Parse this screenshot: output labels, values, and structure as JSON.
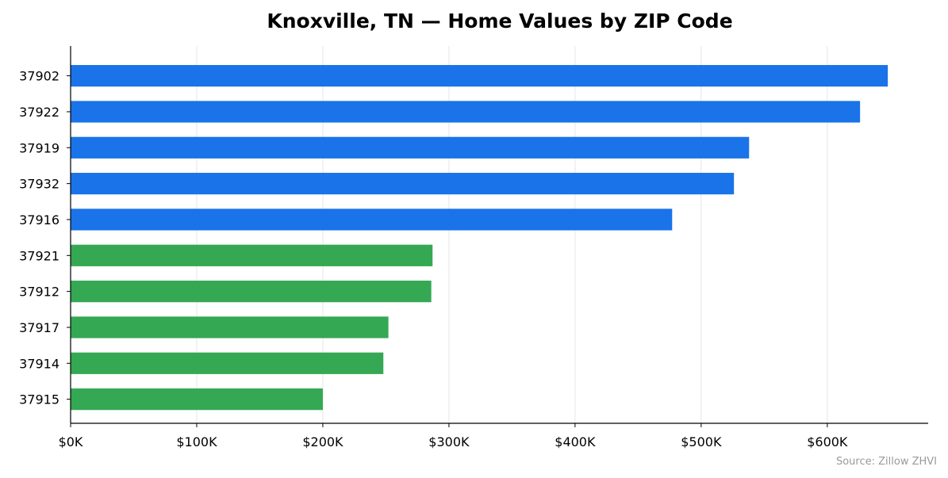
{
  "chart_data": {
    "type": "bar",
    "orientation": "horizontal",
    "title": "Knoxville, TN — Home Values by ZIP Code",
    "xlabel": "",
    "ylabel": "",
    "categories": [
      "37902",
      "37922",
      "37919",
      "37932",
      "37916",
      "37921",
      "37912",
      "37917",
      "37914",
      "37915"
    ],
    "values": [
      648000,
      626000,
      538000,
      526000,
      477000,
      287000,
      286000,
      252000,
      248000,
      200000
    ],
    "bar_colors": [
      "#1a73e8",
      "#1a73e8",
      "#1a73e8",
      "#1a73e8",
      "#1a73e8",
      "#34a853",
      "#34a853",
      "#34a853",
      "#34a853",
      "#34a853"
    ],
    "xlim": [
      0,
      680000
    ],
    "x_ticks": [
      0,
      100000,
      200000,
      300000,
      400000,
      500000,
      600000
    ],
    "x_tick_labels": [
      "$0K",
      "$100K",
      "$200K",
      "$300K",
      "$400K",
      "$500K",
      "$600K"
    ],
    "grid": "vertical",
    "legend": "none",
    "source_note": "Source: Zillow ZHVI"
  }
}
